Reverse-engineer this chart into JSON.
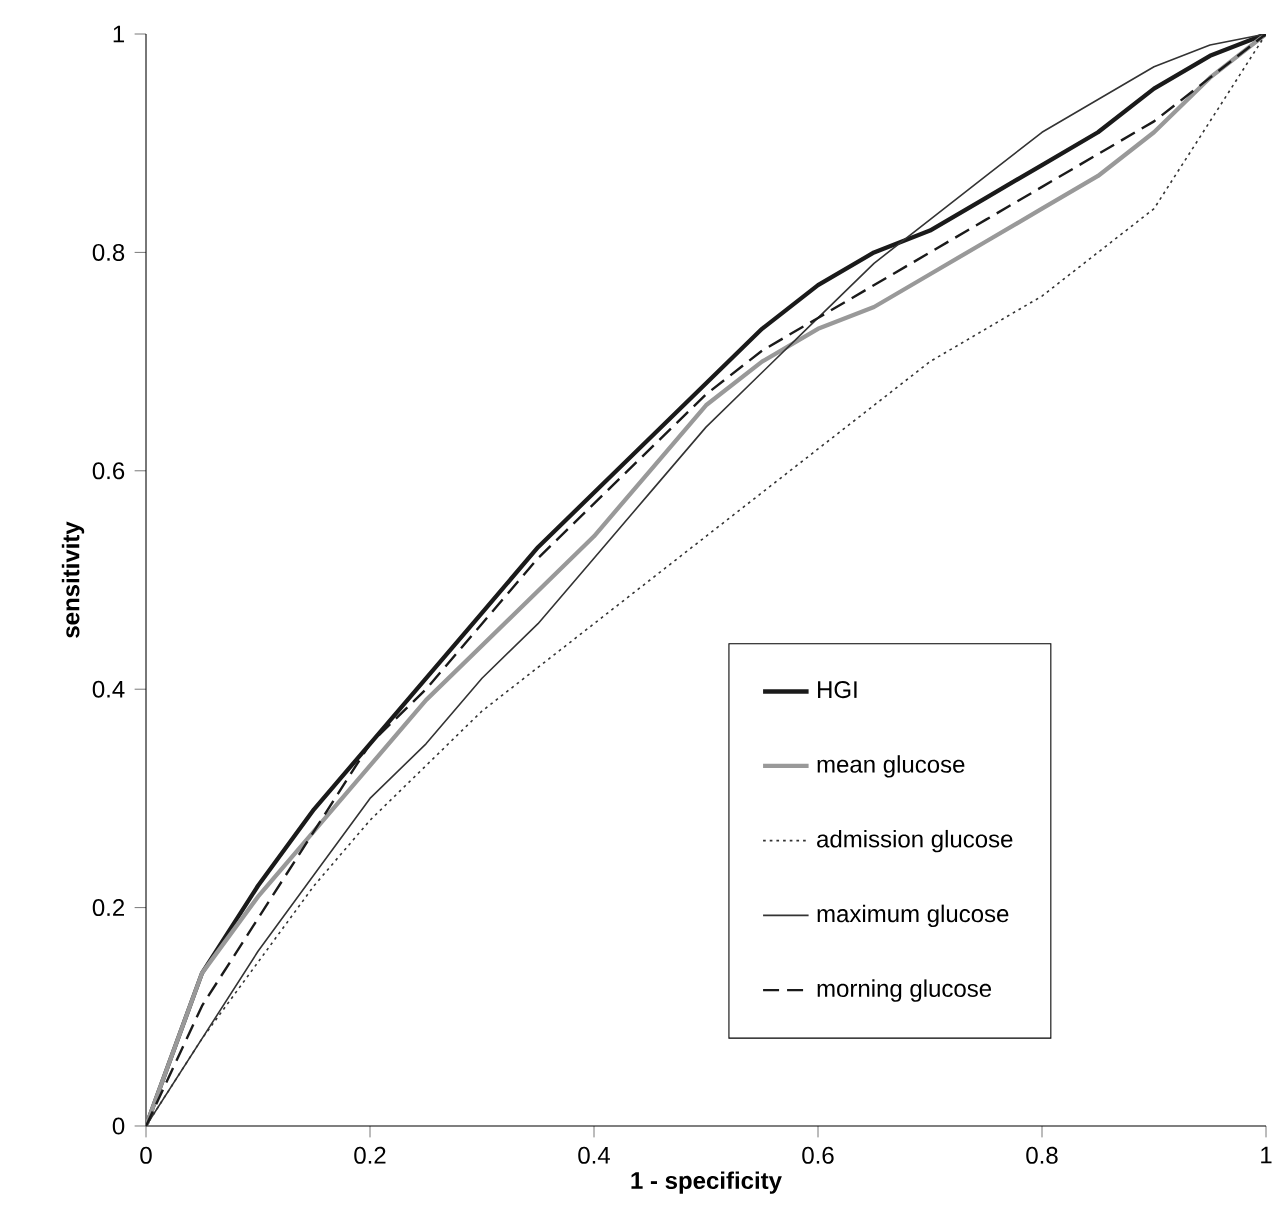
{
  "chart_data": {
    "type": "line",
    "xlabel": "1 - specificity",
    "ylabel": "sensitivity",
    "xlim": [
      0,
      1
    ],
    "ylim": [
      0,
      1
    ],
    "xticks": [
      0,
      0.2,
      0.4,
      0.6,
      0.8,
      1
    ],
    "yticks": [
      0,
      0.2,
      0.4,
      0.6,
      0.8,
      1
    ],
    "grid": false,
    "legend": "right",
    "marker": "none",
    "x": [
      0,
      0.05,
      0.1,
      0.15,
      0.2,
      0.25,
      0.3,
      0.35,
      0.4,
      0.45,
      0.5,
      0.55,
      0.6,
      0.65,
      0.7,
      0.75,
      0.8,
      0.85,
      0.9,
      0.95,
      1
    ],
    "series": [
      {
        "name": "HGI",
        "color": "#1a1a1a",
        "line_style": "solid",
        "values": [
          0,
          0.14,
          0.22,
          0.29,
          0.35,
          0.41,
          0.47,
          0.53,
          0.58,
          0.63,
          0.68,
          0.73,
          0.77,
          0.8,
          0.82,
          0.85,
          0.88,
          0.91,
          0.95,
          0.98,
          1
        ]
      },
      {
        "name": "mean glucose",
        "color": "#999999",
        "line_style": "solid",
        "values": [
          0,
          0.14,
          0.21,
          0.27,
          0.33,
          0.39,
          0.44,
          0.49,
          0.54,
          0.6,
          0.66,
          0.7,
          0.73,
          0.75,
          0.78,
          0.81,
          0.84,
          0.87,
          0.91,
          0.96,
          1
        ]
      },
      {
        "name": "admission glucose",
        "color": "#333333",
        "line_style": "dotted",
        "values": [
          0,
          0.08,
          0.15,
          0.22,
          0.28,
          0.33,
          0.38,
          0.42,
          0.46,
          0.5,
          0.54,
          0.58,
          0.62,
          0.66,
          0.7,
          0.73,
          0.76,
          0.8,
          0.84,
          0.92,
          1
        ]
      },
      {
        "name": "maximum glucose",
        "color": "#333333",
        "line_style": "solid",
        "values": [
          0,
          0.08,
          0.16,
          0.23,
          0.3,
          0.35,
          0.41,
          0.46,
          0.52,
          0.58,
          0.64,
          0.69,
          0.74,
          0.79,
          0.83,
          0.87,
          0.91,
          0.94,
          0.97,
          0.99,
          1
        ]
      },
      {
        "name": "morning glucose",
        "color": "#1a1a1a",
        "line_style": "dashed",
        "values": [
          0,
          0.11,
          0.19,
          0.27,
          0.35,
          0.4,
          0.46,
          0.52,
          0.57,
          0.62,
          0.67,
          0.71,
          0.74,
          0.77,
          0.8,
          0.83,
          0.86,
          0.89,
          0.92,
          0.96,
          1
        ]
      }
    ]
  }
}
